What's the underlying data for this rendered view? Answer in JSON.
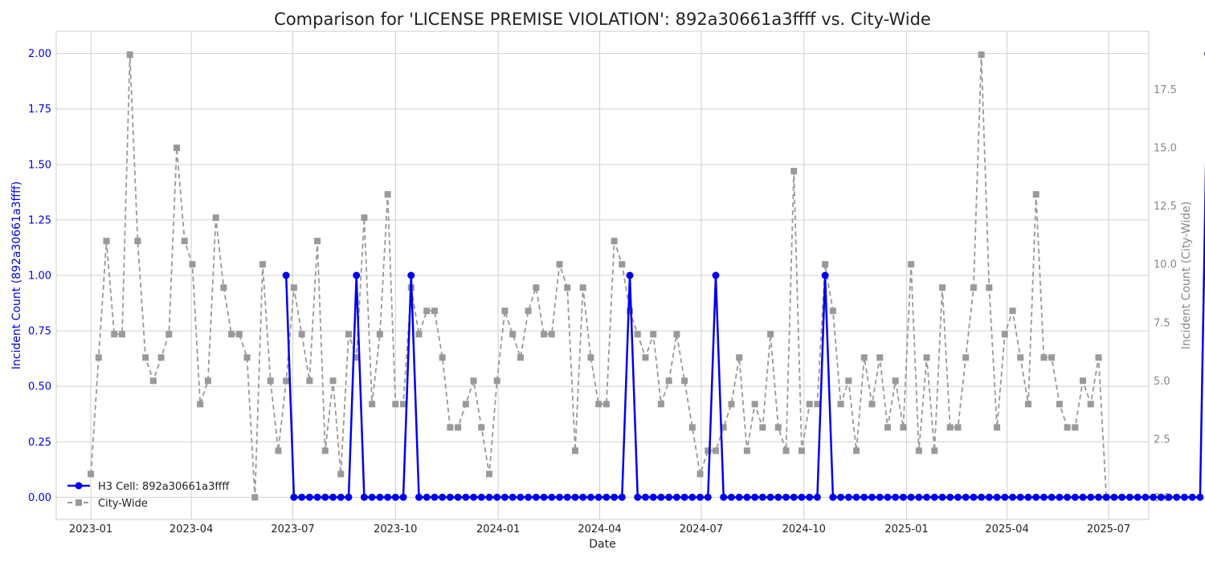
{
  "chart_data": {
    "type": "line",
    "title": "Comparison for 'LICENSE PREMISE VIOLATION': 892a30661a3ffff vs. City-Wide",
    "xlabel": "Date",
    "ylabel_left": "Incident Count (892a30661a3ffff)",
    "ylabel_right": "Incident Count (City-Wide)",
    "ylim_left": [
      -0.1,
      2.1
    ],
    "ylim_right": [
      -0.95,
      20.0
    ],
    "xlim": [
      "2022-12-01",
      "2025-08-06"
    ],
    "x_ticks": [
      {
        "date": "2023-01-01",
        "label": "2023-01"
      },
      {
        "date": "2023-04-01",
        "label": "2023-04"
      },
      {
        "date": "2023-07-01",
        "label": "2023-07"
      },
      {
        "date": "2023-10-01",
        "label": "2023-10"
      },
      {
        "date": "2024-01-01",
        "label": "2024-01"
      },
      {
        "date": "2024-04-01",
        "label": "2024-04"
      },
      {
        "date": "2024-07-01",
        "label": "2024-07"
      },
      {
        "date": "2024-10-01",
        "label": "2024-10"
      },
      {
        "date": "2025-01-01",
        "label": "2025-01"
      },
      {
        "date": "2025-04-01",
        "label": "2025-04"
      },
      {
        "date": "2025-07-01",
        "label": "2025-07"
      }
    ],
    "y_ticks_left": [
      {
        "value": 0.0,
        "label": "0.00"
      },
      {
        "value": 0.25,
        "label": "0.25"
      },
      {
        "value": 0.5,
        "label": "0.50"
      },
      {
        "value": 0.75,
        "label": "0.75"
      },
      {
        "value": 1.0,
        "label": "1.00"
      },
      {
        "value": 1.25,
        "label": "1.25"
      },
      {
        "value": 1.5,
        "label": "1.50"
      },
      {
        "value": 1.75,
        "label": "1.75"
      },
      {
        "value": 2.0,
        "label": "2.00"
      }
    ],
    "y_ticks_right": [
      {
        "value": 0.0,
        "label": "0.0"
      },
      {
        "value": 2.5,
        "label": "2.5"
      },
      {
        "value": 5.0,
        "label": "5.0"
      },
      {
        "value": 7.5,
        "label": "7.5"
      },
      {
        "value": 10.0,
        "label": "10.0"
      },
      {
        "value": 12.5,
        "label": "12.5"
      },
      {
        "value": 15.0,
        "label": "15.0"
      },
      {
        "value": 17.5,
        "label": "17.5"
      }
    ],
    "grid": true,
    "legend_position": "bottom-left",
    "city_wide": {
      "name": "City-Wide",
      "axis": "right",
      "color": "#999999",
      "style": "dashed",
      "marker": "square",
      "start": "2023-01-01",
      "step_days": 7,
      "values": [
        1,
        6,
        11,
        7,
        7,
        19,
        11,
        6,
        5,
        6,
        7,
        15,
        11,
        10,
        4,
        5,
        12,
        9,
        7,
        7,
        6,
        0,
        10,
        5,
        2,
        5,
        9,
        7,
        5,
        11,
        2,
        5,
        1,
        7,
        6,
        12,
        4,
        7,
        13,
        4,
        4,
        9,
        7,
        8,
        8,
        6,
        3,
        3,
        4,
        5,
        3,
        1,
        5,
        8,
        7,
        6,
        8,
        9,
        7,
        7,
        10,
        9,
        2,
        9,
        6,
        4,
        4,
        11,
        10,
        8,
        7,
        6,
        7,
        4,
        5,
        7,
        5,
        3,
        1,
        2,
        2,
        3,
        4,
        6,
        2,
        4,
        3,
        7,
        3,
        2,
        14,
        2,
        4,
        4,
        10,
        8,
        4,
        5,
        2,
        6,
        4,
        6,
        3,
        5,
        3,
        10,
        2,
        6,
        2,
        9,
        3,
        3,
        6,
        9,
        19,
        9,
        3,
        7,
        8,
        6,
        4,
        13,
        6,
        6,
        4,
        3,
        3,
        5,
        4,
        6,
        0
      ]
    },
    "cell": {
      "name": "H3 Cell: 892a30661a3ffff",
      "axis": "left",
      "color": "#0000ee",
      "style": "solid",
      "marker": "circle",
      "start": "2023-06-25",
      "step_days": 7,
      "values": [
        1,
        0,
        0,
        0,
        0,
        0,
        0,
        0,
        0,
        1,
        0,
        0,
        0,
        0,
        0,
        0,
        1,
        0,
        0,
        0,
        0,
        0,
        0,
        0,
        0,
        0,
        0,
        0,
        0,
        0,
        0,
        0,
        0,
        0,
        0,
        0,
        0,
        0,
        0,
        0,
        0,
        0,
        0,
        0,
        1,
        0,
        0,
        0,
        0,
        0,
        0,
        0,
        0,
        0,
        0,
        1,
        0,
        0,
        0,
        0,
        0,
        0,
        0,
        0,
        0,
        0,
        0,
        0,
        0,
        1,
        0,
        0,
        0,
        0,
        0,
        0,
        0,
        0,
        0,
        0,
        0,
        0,
        0,
        0,
        0,
        0,
        0,
        0,
        0,
        0,
        0,
        0,
        0,
        0,
        0,
        0,
        0,
        0,
        0,
        0,
        0,
        0,
        0,
        0,
        0,
        0,
        0,
        0,
        0,
        0,
        0,
        0,
        0,
        0,
        0,
        0,
        0,
        0,
        2
      ]
    }
  }
}
